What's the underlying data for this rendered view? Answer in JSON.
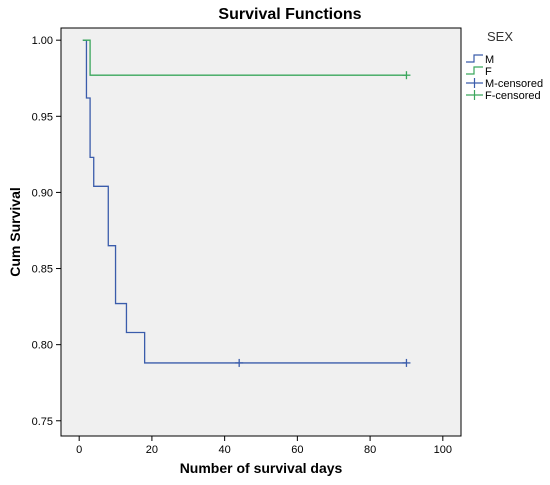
{
  "chart_data": {
    "type": "line",
    "title": "Survival Functions",
    "xlabel": "Number of survival days",
    "ylabel": "Cum Survival",
    "xlim": [
      -5,
      105
    ],
    "ylim": [
      0.74,
      1.008
    ],
    "xticks": [
      "0",
      "20",
      "40",
      "60",
      "80",
      "100"
    ],
    "xtick_values": [
      0,
      20,
      40,
      60,
      80,
      100
    ],
    "yticks": [
      "0.75",
      "0.80",
      "0.85",
      "0.90",
      "0.95",
      "1.00"
    ],
    "ytick_values": [
      0.75,
      0.8,
      0.85,
      0.9,
      0.95,
      1.0
    ],
    "plot_background": "#f0f0f0",
    "grid": false,
    "legend_placement": "right",
    "legend_title": "SEX",
    "series": [
      {
        "name": "M",
        "color": "#3a5cab",
        "step": true,
        "x": [
          1,
          2,
          3,
          4,
          8,
          10,
          13,
          18,
          44,
          90
        ],
        "y": [
          1.0,
          0.962,
          0.923,
          0.904,
          0.865,
          0.827,
          0.808,
          0.788,
          0.788,
          0.788
        ]
      },
      {
        "name": "F",
        "color": "#3aa65c",
        "step": true,
        "x": [
          1,
          3,
          90
        ],
        "y": [
          1.0,
          0.977,
          0.977
        ]
      }
    ],
    "censored": [
      {
        "name": "M-censored",
        "color": "#3a5cab",
        "x": [
          44,
          90
        ],
        "y": [
          0.788,
          0.788
        ]
      },
      {
        "name": "F-censored",
        "color": "#3aa65c",
        "x": [
          90
        ],
        "y": [
          0.977
        ]
      }
    ],
    "legend": [
      {
        "label": "M",
        "color": "#3a5cab",
        "kind": "line"
      },
      {
        "label": "F",
        "color": "#3aa65c",
        "kind": "line"
      },
      {
        "label": "M-censored",
        "color": "#3a5cab",
        "kind": "censor"
      },
      {
        "label": "F-censored",
        "color": "#3aa65c",
        "kind": "censor"
      }
    ]
  }
}
